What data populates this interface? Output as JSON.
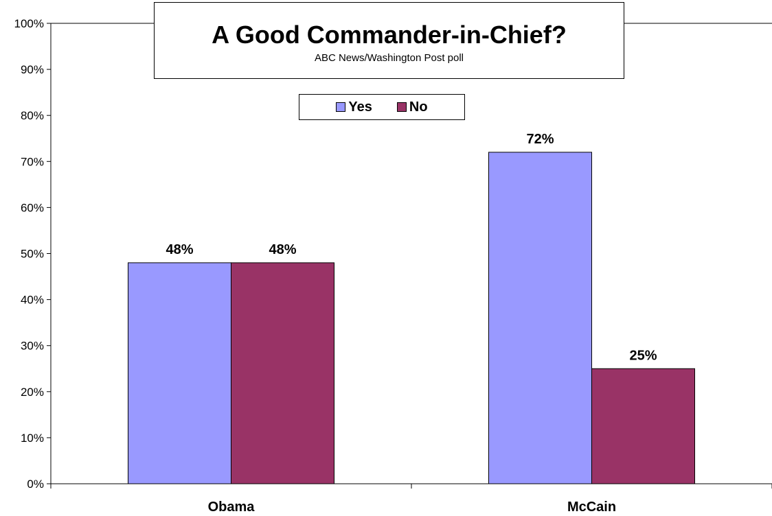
{
  "chart_data": {
    "type": "bar",
    "title": "A Good Commander-in-Chief?",
    "subtitle": "ABC News/Washington Post poll",
    "categories": [
      "Obama",
      "McCain"
    ],
    "series": [
      {
        "name": "Yes",
        "values": [
          48,
          72
        ],
        "color": "#9999ff",
        "labels": [
          "48%",
          "72%"
        ]
      },
      {
        "name": "No",
        "values": [
          48,
          25
        ],
        "color": "#993366",
        "labels": [
          "48%",
          "25%"
        ]
      }
    ],
    "ylim": [
      0,
      100
    ],
    "yticks": [
      "0%",
      "10%",
      "20%",
      "30%",
      "40%",
      "50%",
      "60%",
      "70%",
      "80%",
      "90%",
      "100%"
    ],
    "xlabel": "",
    "ylabel": "",
    "grid": false,
    "legend_position": "top-center"
  }
}
